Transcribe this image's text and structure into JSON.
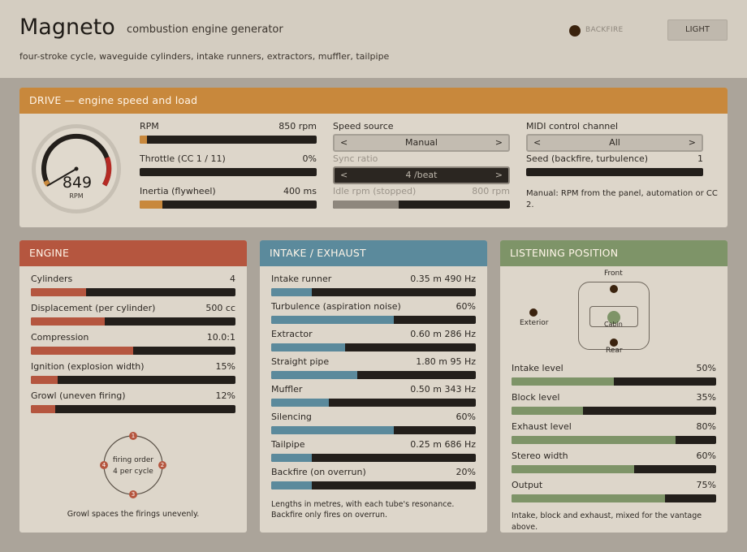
{
  "header": {
    "title": "Magneto",
    "subtitle": "combustion engine generator",
    "description": "four-stroke cycle, waveguide cylinders, intake runners, extractors, muffler, tailpipe",
    "backfire_label": "BACKFIRE",
    "theme_button": "LIGHT"
  },
  "colors": {
    "drive": "#c8883c",
    "engine": "#b5563f",
    "intake": "#5b8a9c",
    "listening": "#7e9468"
  },
  "drive": {
    "title": "DRIVE — engine speed and load",
    "gauge": {
      "value": "849",
      "unit": "RPM"
    },
    "rpm": {
      "label": "RPM",
      "value": "850 rpm",
      "level": 0.04
    },
    "throttle": {
      "label": "Throttle  (CC 1 / 11)",
      "value": "0%",
      "level": 0.0
    },
    "inertia": {
      "label": "Inertia (flywheel)",
      "value": "400 ms",
      "level": 0.13
    },
    "speed_source": {
      "label": "Speed source",
      "value": "Manual",
      "prev": "<",
      "next": ">"
    },
    "sync_ratio": {
      "label": "Sync ratio",
      "value": "4 /beat",
      "prev": "<",
      "next": ">"
    },
    "idle_rpm": {
      "label": "Idle rpm (stopped)",
      "value": "800 rpm",
      "level": 0.37
    },
    "midi": {
      "label": "MIDI control channel",
      "value": "All",
      "prev": "<",
      "next": ">"
    },
    "seed": {
      "label": "Seed (backfire, turbulence)",
      "value": "1",
      "level": 0.0
    },
    "note": "Manual: RPM from the panel, automation or CC 2."
  },
  "engine": {
    "title": "ENGINE",
    "controls": [
      {
        "label": "Cylinders",
        "value": "4",
        "level": 0.27
      },
      {
        "label": "Displacement (per cylinder)",
        "value": "500 cc",
        "level": 0.36
      },
      {
        "label": "Compression",
        "value": "10.0:1",
        "level": 0.5
      },
      {
        "label": "Ignition (explosion width)",
        "value": "15%",
        "level": 0.13
      },
      {
        "label": "Growl (uneven firing)",
        "value": "12%",
        "level": 0.12
      }
    ],
    "firing": {
      "line1": "firing order",
      "line2": "4 per cycle",
      "order": [
        "1",
        "2",
        "3",
        "4"
      ]
    },
    "note": "Growl spaces the firings unevenly."
  },
  "intake": {
    "title": "INTAKE  /  EXHAUST",
    "controls": [
      {
        "label": "Intake runner",
        "value": "0.35 m  490 Hz",
        "level": 0.2
      },
      {
        "label": "Turbulence (aspiration noise)",
        "value": "60%",
        "level": 0.6
      },
      {
        "label": "Extractor",
        "value": "0.60 m  286 Hz",
        "level": 0.36
      },
      {
        "label": "Straight pipe",
        "value": "1.80 m  95 Hz",
        "level": 0.42
      },
      {
        "label": "Muffler",
        "value": "0.50 m  343 Hz",
        "level": 0.28
      },
      {
        "label": "Silencing",
        "value": "60%",
        "level": 0.6
      },
      {
        "label": "Tailpipe",
        "value": "0.25 m  686 Hz",
        "level": 0.2
      },
      {
        "label": "Backfire (on overrun)",
        "value": "20%",
        "level": 0.2
      }
    ],
    "note_line1": "Lengths in metres, with each tube's resonance.",
    "note_line2": "Backfire only fires on overrun."
  },
  "listening": {
    "title": "LISTENING POSITION",
    "positions": {
      "front": "Front",
      "rear": "Rear",
      "cabin": "Cabin",
      "exterior": "Exterior"
    },
    "controls": [
      {
        "label": "Intake level",
        "value": "50%",
        "level": 0.5
      },
      {
        "label": "Block level",
        "value": "35%",
        "level": 0.35
      },
      {
        "label": "Exhaust level",
        "value": "80%",
        "level": 0.8
      },
      {
        "label": "Stereo width",
        "value": "60%",
        "level": 0.6
      },
      {
        "label": "Output",
        "value": "75%",
        "level": 0.75
      }
    ],
    "note": "Intake, block and exhaust, mixed for the vantage above."
  }
}
